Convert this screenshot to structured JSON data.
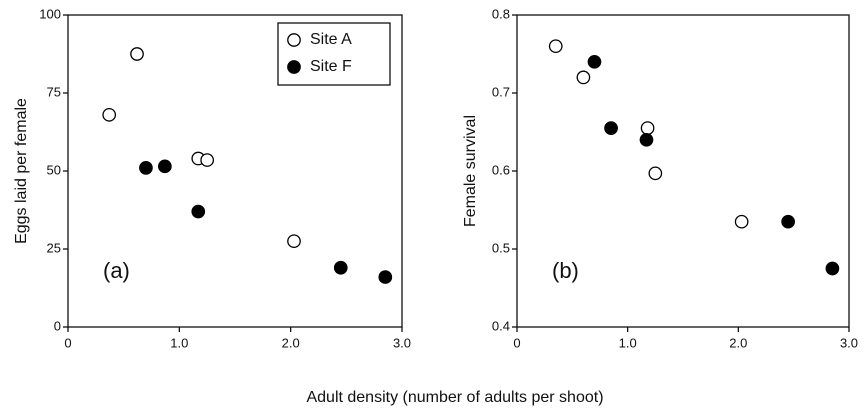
{
  "xlabel": "Adult density (number of adults per shoot)",
  "chart_data": [
    {
      "type": "scatter",
      "ylabel": "Eggs laid per female",
      "annotation": "(a)",
      "xlim": [
        0,
        3
      ],
      "ylim": [
        0,
        100
      ],
      "xticks": [
        0,
        {
          "value": 1,
          "label": "1.0"
        },
        {
          "value": 2,
          "label": "2.0"
        },
        {
          "value": 3,
          "label": "3.0"
        }
      ],
      "yticks": [
        0,
        25,
        50,
        75,
        100
      ],
      "legend": "top-right",
      "series": [
        {
          "name": "Site A",
          "color": "#000000",
          "marker": "open",
          "x": [
            0.37,
            0.62,
            1.17,
            1.25,
            2.03
          ],
          "values": [
            68,
            87.5,
            54,
            53.5,
            27.5
          ]
        },
        {
          "name": "Site F",
          "color": "#000000",
          "marker": "filled",
          "x": [
            0.7,
            0.87,
            1.17,
            2.45,
            2.85
          ],
          "values": [
            51,
            51.5,
            37,
            19,
            16
          ]
        }
      ]
    },
    {
      "type": "scatter",
      "ylabel": "Female survival",
      "annotation": "(b)",
      "xlim": [
        0,
        3
      ],
      "ylim": [
        0.4,
        0.8
      ],
      "xticks": [
        0,
        {
          "value": 1,
          "label": "1.0"
        },
        {
          "value": 2,
          "label": "2.0"
        },
        {
          "value": 3,
          "label": "3.0"
        }
      ],
      "yticks": [
        0.4,
        0.5,
        0.6,
        0.7,
        0.8
      ],
      "series": [
        {
          "color": "#000000",
          "marker": "open",
          "x": [
            0.35,
            0.6,
            1.18,
            1.25,
            2.03
          ],
          "values": [
            0.76,
            0.72,
            0.655,
            0.597,
            0.535
          ]
        },
        {
          "color": "#000000",
          "marker": "filled",
          "x": [
            0.7,
            0.85,
            1.17,
            2.45,
            2.85
          ],
          "values": [
            0.74,
            0.655,
            0.64,
            0.535,
            0.475
          ]
        }
      ]
    }
  ]
}
